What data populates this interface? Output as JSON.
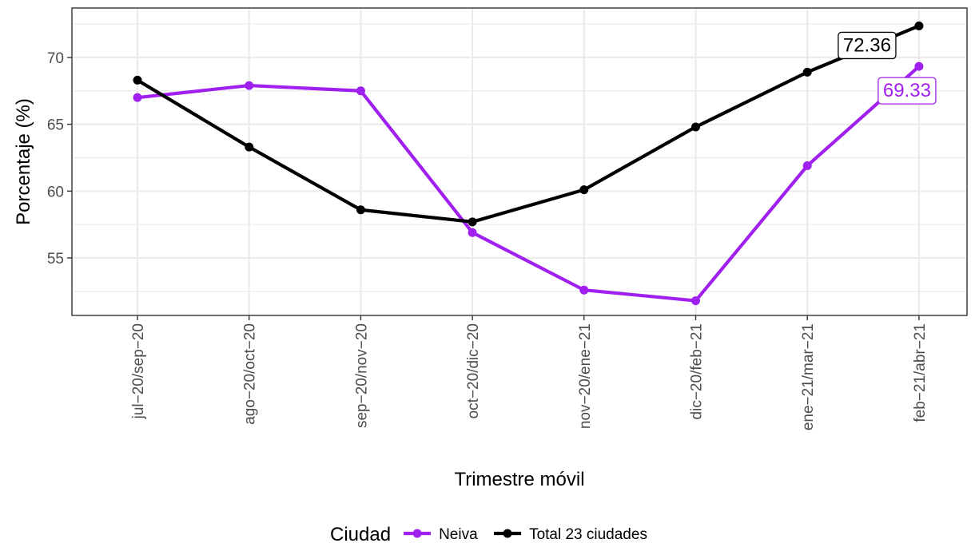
{
  "chart_data": {
    "type": "line",
    "title": "",
    "xlabel": "Trimestre móvil",
    "ylabel": "Porcentaje (%)",
    "categories": [
      "jul−20/sep−20",
      "ago−20/oct−20",
      "sep−20/nov−20",
      "oct−20/dic−20",
      "nov−20/ene−21",
      "dic−20/feb−21",
      "ene−21/mar−21",
      "feb−21/abr−21"
    ],
    "ylim": [
      50.7,
      73.7
    ],
    "yticks": [
      55,
      60,
      65,
      70
    ],
    "grid": true,
    "legend": {
      "title": "Ciudad",
      "position": "bottom"
    },
    "series": [
      {
        "name": "Neiva",
        "color": "#a020f0",
        "values": [
          67.0,
          67.9,
          67.5,
          56.9,
          52.6,
          51.8,
          61.9,
          69.33
        ],
        "end_label": "69.33"
      },
      {
        "name": "Total 23 ciudades",
        "color": "#000000",
        "values": [
          68.3,
          63.3,
          58.6,
          57.7,
          60.1,
          64.8,
          68.9,
          72.36
        ],
        "end_label": "72.36"
      }
    ]
  }
}
